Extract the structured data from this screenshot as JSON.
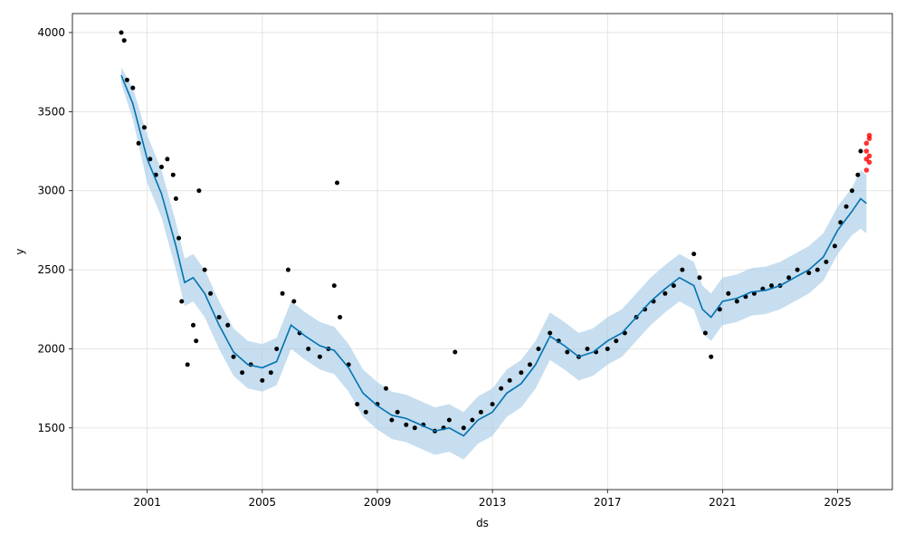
{
  "chart_data": {
    "type": "scatter",
    "title": "",
    "xlabel": "ds",
    "ylabel": "y",
    "xlim": [
      1998.4,
      2026.9
    ],
    "ylim": [
      1110,
      4120
    ],
    "xticks": [
      2001,
      2005,
      2009,
      2013,
      2017,
      2021,
      2025
    ],
    "yticks": [
      1500,
      2000,
      2500,
      3000,
      3500,
      4000
    ],
    "grid": true,
    "colors": {
      "observed": "#000000",
      "forecast_line": "#0072B2",
      "uncertainty_band": "#A8CCE6",
      "anomaly": "#FF0000"
    },
    "forecast": {
      "x": [
        2000.1,
        2000.5,
        2001.0,
        2001.5,
        2002.0,
        2002.3,
        2002.6,
        2003.0,
        2003.5,
        2004.0,
        2004.5,
        2005.0,
        2005.5,
        2006.0,
        2006.5,
        2007.0,
        2007.5,
        2008.0,
        2008.5,
        2009.0,
        2009.5,
        2010.0,
        2010.5,
        2011.0,
        2011.5,
        2012.0,
        2012.5,
        2013.0,
        2013.5,
        2014.0,
        2014.5,
        2015.0,
        2015.5,
        2016.0,
        2016.5,
        2017.0,
        2017.5,
        2018.0,
        2018.5,
        2019.0,
        2019.5,
        2020.0,
        2020.3,
        2020.6,
        2021.0,
        2021.5,
        2022.0,
        2022.5,
        2023.0,
        2023.5,
        2024.0,
        2024.5,
        2025.0,
        2025.5,
        2025.8,
        2026.0
      ],
      "yhat": [
        3730,
        3550,
        3200,
        2980,
        2650,
        2420,
        2450,
        2350,
        2150,
        1980,
        1900,
        1880,
        1920,
        2150,
        2080,
        2020,
        1990,
        1880,
        1720,
        1640,
        1580,
        1560,
        1520,
        1480,
        1500,
        1450,
        1550,
        1600,
        1720,
        1780,
        1900,
        2080,
        2020,
        1950,
        1980,
        2050,
        2100,
        2200,
        2300,
        2380,
        2450,
        2400,
        2250,
        2200,
        2300,
        2320,
        2360,
        2370,
        2400,
        2450,
        2500,
        2580,
        2750,
        2870,
        2950,
        2920
      ],
      "lower": [
        3680,
        3450,
        3050,
        2830,
        2500,
        2270,
        2300,
        2200,
        2000,
        1830,
        1750,
        1730,
        1770,
        2000,
        1930,
        1870,
        1840,
        1730,
        1570,
        1490,
        1430,
        1410,
        1370,
        1330,
        1350,
        1300,
        1400,
        1450,
        1570,
        1630,
        1750,
        1930,
        1870,
        1800,
        1830,
        1900,
        1950,
        2050,
        2150,
        2230,
        2300,
        2250,
        2100,
        2050,
        2150,
        2170,
        2210,
        2220,
        2250,
        2300,
        2350,
        2430,
        2600,
        2720,
        2760,
        2730
      ],
      "upper": [
        3780,
        3650,
        3350,
        3130,
        2800,
        2570,
        2600,
        2500,
        2300,
        2130,
        2050,
        2030,
        2070,
        2300,
        2230,
        2170,
        2140,
        2030,
        1870,
        1790,
        1730,
        1710,
        1670,
        1630,
        1650,
        1600,
        1700,
        1750,
        1870,
        1930,
        2050,
        2230,
        2170,
        2100,
        2130,
        2200,
        2250,
        2350,
        2450,
        2530,
        2600,
        2550,
        2400,
        2350,
        2450,
        2470,
        2510,
        2520,
        2550,
        2600,
        2650,
        2730,
        2900,
        3020,
        3130,
        3100
      ]
    },
    "observed": {
      "x": [
        2000.1,
        2000.2,
        2000.3,
        2000.5,
        2000.7,
        2000.9,
        2001.1,
        2001.3,
        2001.5,
        2001.7,
        2001.9,
        2002.0,
        2002.1,
        2002.2,
        2002.4,
        2002.6,
        2002.7,
        2002.8,
        2003.0,
        2003.2,
        2003.5,
        2003.8,
        2004.0,
        2004.3,
        2004.6,
        2005.0,
        2005.3,
        2005.5,
        2005.7,
        2005.9,
        2006.1,
        2006.3,
        2006.6,
        2007.0,
        2007.3,
        2007.5,
        2007.6,
        2007.7,
        2008.0,
        2008.3,
        2008.6,
        2009.0,
        2009.3,
        2009.5,
        2009.7,
        2010.0,
        2010.3,
        2010.6,
        2011.0,
        2011.3,
        2011.5,
        2011.7,
        2012.0,
        2012.3,
        2012.6,
        2013.0,
        2013.3,
        2013.6,
        2014.0,
        2014.3,
        2014.6,
        2015.0,
        2015.3,
        2015.6,
        2016.0,
        2016.3,
        2016.6,
        2017.0,
        2017.3,
        2017.6,
        2018.0,
        2018.3,
        2018.6,
        2019.0,
        2019.3,
        2019.6,
        2020.0,
        2020.2,
        2020.4,
        2020.6,
        2020.9,
        2021.2,
        2021.5,
        2021.8,
        2022.1,
        2022.4,
        2022.7,
        2023.0,
        2023.3,
        2023.6,
        2024.0,
        2024.3,
        2024.6,
        2024.9,
        2025.1,
        2025.3,
        2025.5,
        2025.7,
        2025.8
      ],
      "y": [
        4000,
        3950,
        3700,
        3650,
        3300,
        3400,
        3200,
        3100,
        3150,
        3200,
        3100,
        2950,
        2700,
        2300,
        1900,
        2150,
        2050,
        3000,
        2500,
        2350,
        2200,
        2150,
        1950,
        1850,
        1900,
        1800,
        1850,
        2000,
        2350,
        2500,
        2300,
        2100,
        2000,
        1950,
        2000,
        2400,
        3050,
        2200,
        1900,
        1650,
        1600,
        1650,
        1750,
        1550,
        1600,
        1520,
        1500,
        1520,
        1480,
        1500,
        1550,
        1980,
        1500,
        1550,
        1600,
        1650,
        1750,
        1800,
        1850,
        1900,
        2000,
        2100,
        2050,
        1980,
        1950,
        2000,
        1980,
        2000,
        2050,
        2100,
        2200,
        2250,
        2300,
        2350,
        2400,
        2500,
        2600,
        2450,
        2100,
        1950,
        2250,
        2350,
        2300,
        2330,
        2350,
        2380,
        2400,
        2400,
        2450,
        2500,
        2480,
        2500,
        2550,
        2650,
        2800,
        2900,
        3000,
        3100,
        3250
      ]
    },
    "anomalies": {
      "x": [
        2026.0,
        2026.0,
        2026.0,
        2026.0,
        2026.1,
        2026.1,
        2026.1,
        2026.1
      ],
      "y": [
        3130,
        3200,
        3250,
        3300,
        3180,
        3220,
        3330,
        3350
      ]
    }
  }
}
